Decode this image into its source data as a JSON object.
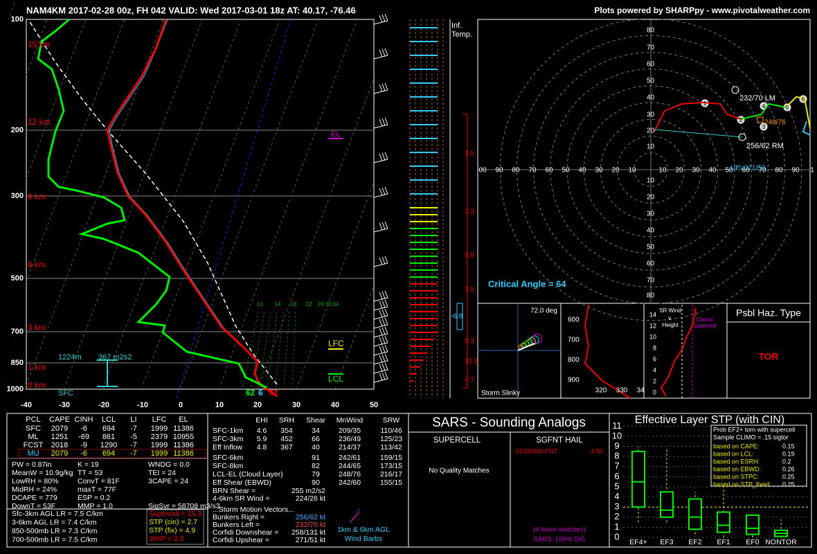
{
  "header": {
    "title": "NAM4KM 2017-02-28 00z, FH 042   VALID: Wed 2017-03-01 18z   AT: 40.17, -76.46",
    "credit": "Plots powered by SHARPpy - www.pivotalweather.com"
  },
  "skewt": {
    "pressure_labels": [
      "100",
      "200",
      "300",
      "500",
      "700",
      "850",
      "1000"
    ],
    "temp_labels": [
      "-40",
      "-30",
      "-20",
      "-10",
      "0",
      "10",
      "20",
      "30",
      "40",
      "50"
    ],
    "height_labels": [
      "15 km",
      "12 km",
      "9 km",
      "6 km",
      "3 km",
      "1 km",
      "0 km"
    ],
    "el": "EL",
    "lfc": "LFC",
    "lcl": "LCL",
    "eff_depth": "1224m",
    "eff_srh": "367 m2s2",
    "sfc": "SFC",
    "sfc_values": [
      "62",
      "6",
      "72"
    ],
    "wind_speeds": [
      "10",
      "14",
      "18",
      "22",
      "26",
      "30",
      "34"
    ]
  },
  "inferred_temp": {
    "title": [
      "Inf.",
      "Temp."
    ],
    "values": [
      "1.5",
      "3.3",
      "0.8",
      "1.5",
      "5.3",
      "12.8",
      "4.7"
    ],
    "marker": "-6.8"
  },
  "hodograph": {
    "ring_labels_up": [
      "80",
      "70",
      "60",
      "50",
      "40",
      "30",
      "20",
      "10"
    ],
    "ring_labels_down": [
      "10",
      "20",
      "30",
      "40",
      "50",
      "60",
      "70",
      "80"
    ],
    "axis_left": [
      "00",
      "90",
      "80",
      "70",
      "60",
      "50",
      "40",
      "30",
      "20",
      "10"
    ],
    "axis_right": [
      "10",
      "20",
      "30",
      "40",
      "50",
      "60",
      "70",
      "80",
      "90",
      "1"
    ],
    "points": [
      "1",
      "2",
      "3",
      "4",
      "5",
      "6"
    ],
    "lm": "232/70 LM",
    "rm": "256/62 RM",
    "mean": "248/76",
    "up": "UP=071/50",
    "critical_angle": "Critical Angle = 64"
  },
  "slinky": {
    "deg": "72.0 deg",
    "label": "Storm Slinky"
  },
  "theta": {
    "pressure_labels": [
      "600",
      "700",
      "800",
      "900"
    ],
    "theta_labels": [
      "320",
      "330",
      "34"
    ]
  },
  "sr_wind": {
    "title": [
      "SR Wind",
      "v.",
      "Height"
    ],
    "ticks": [
      "14",
      "12",
      "10",
      "8",
      "6",
      "4",
      "2",
      "0"
    ],
    "classic": [
      "Classic",
      "Supercell"
    ]
  },
  "hazard": {
    "title": "Psbl Haz. Type",
    "value": "TOR"
  },
  "parcels": {
    "headers": [
      "PCL",
      "CAPE",
      "CINH",
      "LCL",
      "LI",
      "LFC",
      "EL"
    ],
    "rows": [
      [
        "SFC",
        "2079",
        "-6",
        "694",
        "-7",
        "1999",
        "11386"
      ],
      [
        "ML",
        "1251",
        "-69",
        "861",
        "-5",
        "2379",
        "10955"
      ],
      [
        "FCST",
        "2018",
        "-9",
        "1290",
        "-7",
        "1999",
        "11386"
      ],
      [
        "MU",
        "2079",
        "-6",
        "694",
        "-7",
        "1999",
        "11386"
      ]
    ]
  },
  "thermo": [
    [
      "PW = 0.87in",
      "K = 19",
      "WNDG = 0.0"
    ],
    [
      "MeanW = 10.9g/kg",
      "TT = 53",
      "TEI = 24"
    ],
    [
      "LowRH = 80%",
      "ConvT = 81F",
      "3CAPE = 24"
    ],
    [
      "MidRH = 24%",
      "maxT = 77F"
    ],
    [
      "DCAPE = 779",
      "ESP = 0.2"
    ],
    [
      "DownT = 53F",
      "MMP = 1.0",
      "SigSvr = 58708 m3/s3"
    ]
  ],
  "lapse_rates": [
    "Sfc-3km AGL LR = 7.5 C/km",
    "3-6km AGL LR = 7.4 C/km",
    "850-500mb LR = 7.3 C/km",
    "700-500mb LR = 7.5 C/km"
  ],
  "indices": [
    "Supercell = 15.3",
    "STP (cin) = 2.7",
    "STP (fix) = 4.9",
    "SHIP = 2.0"
  ],
  "kinematics": {
    "headers": [
      "EHI",
      "SRH",
      "Shear",
      "MnWind",
      "SRW"
    ],
    "rows1": [
      [
        "SFC-1km",
        "4.6",
        "354",
        "34",
        "209/35",
        "110/46"
      ],
      [
        "SFC-3km",
        "5.9",
        "452",
        "66",
        "236/49",
        "125/23"
      ],
      [
        "Eff Inflow",
        "4.8",
        "367",
        "40",
        "214/37",
        "113/42"
      ]
    ],
    "rows2": [
      [
        "SFC-6km",
        "91",
        "242/61",
        "159/15"
      ],
      [
        "SFC-8km",
        "82",
        "244/65",
        "173/15"
      ],
      [
        "LCL-EL (Cloud Layer)",
        "79",
        "248/76",
        "216/17"
      ],
      [
        "Eff Shear (EBWD)",
        "90",
        "242/60",
        "155/15"
      ]
    ],
    "misc": [
      [
        "BRN Shear =",
        "255 m2/s2"
      ],
      [
        "4-6km SR Wind =",
        "224/26 kt"
      ]
    ],
    "motion_title": "...Storm Motion Vectors...",
    "motions": [
      [
        "Bunkers Right =",
        "256/62 kt"
      ],
      [
        "Bunkers Left =",
        "232/70 kt"
      ],
      [
        "Corfidi Downshear =",
        "258/131 kt"
      ],
      [
        "Corfidi Upshear =",
        "271/51 kt"
      ]
    ],
    "barb_legend": [
      "1km & 6km AGL",
      "Wind Barbs"
    ]
  },
  "sars": {
    "title": "SARS - Sounding Analogs",
    "supercell": "SUPERCELL",
    "hail": "SGFNT HAIL",
    "no_match": "No Quality Matches",
    "hail_match": "91032800.FNT",
    "hail_size": "4.50",
    "loose": "(4 loose matches)",
    "sig": "SARS: 100% SIG"
  },
  "stp": {
    "title": "Effective Layer STP (with CIN)",
    "yticks": [
      "0",
      "1",
      "2",
      "3",
      "4",
      "5",
      "6",
      "7",
      "8",
      "9",
      "10",
      "11"
    ],
    "categories": [
      "EF4+",
      "EF3",
      "EF2",
      "EF1",
      "EF0",
      "NONTOR"
    ],
    "boxes": [
      [
        1.5,
        3,
        5.5,
        8.5,
        9
      ],
      [
        1.5,
        2,
        2.7,
        4.5,
        8.7
      ],
      [
        0.3,
        0.8,
        2,
        3.8,
        4.5
      ],
      [
        0,
        0.5,
        1.2,
        2.5,
        5
      ],
      [
        0,
        0.3,
        0.9,
        2.2,
        2.5
      ],
      [
        0,
        0.1,
        0.4,
        0.7,
        1.8
      ]
    ],
    "prob_title": [
      "Prob EF2+ torn with supercell",
      "Sample CLIMO = .15 sigtor"
    ],
    "probs": [
      [
        "based on CAPE:",
        "0.15"
      ],
      [
        "based on LCL:",
        "0.19"
      ],
      [
        "based on ESRH:",
        "0.2"
      ],
      [
        "based on EBWD:",
        "0.26"
      ],
      [
        "based on STPC:",
        "0.25"
      ],
      [
        "based on STP_fixed:",
        "0.25"
      ]
    ]
  }
}
